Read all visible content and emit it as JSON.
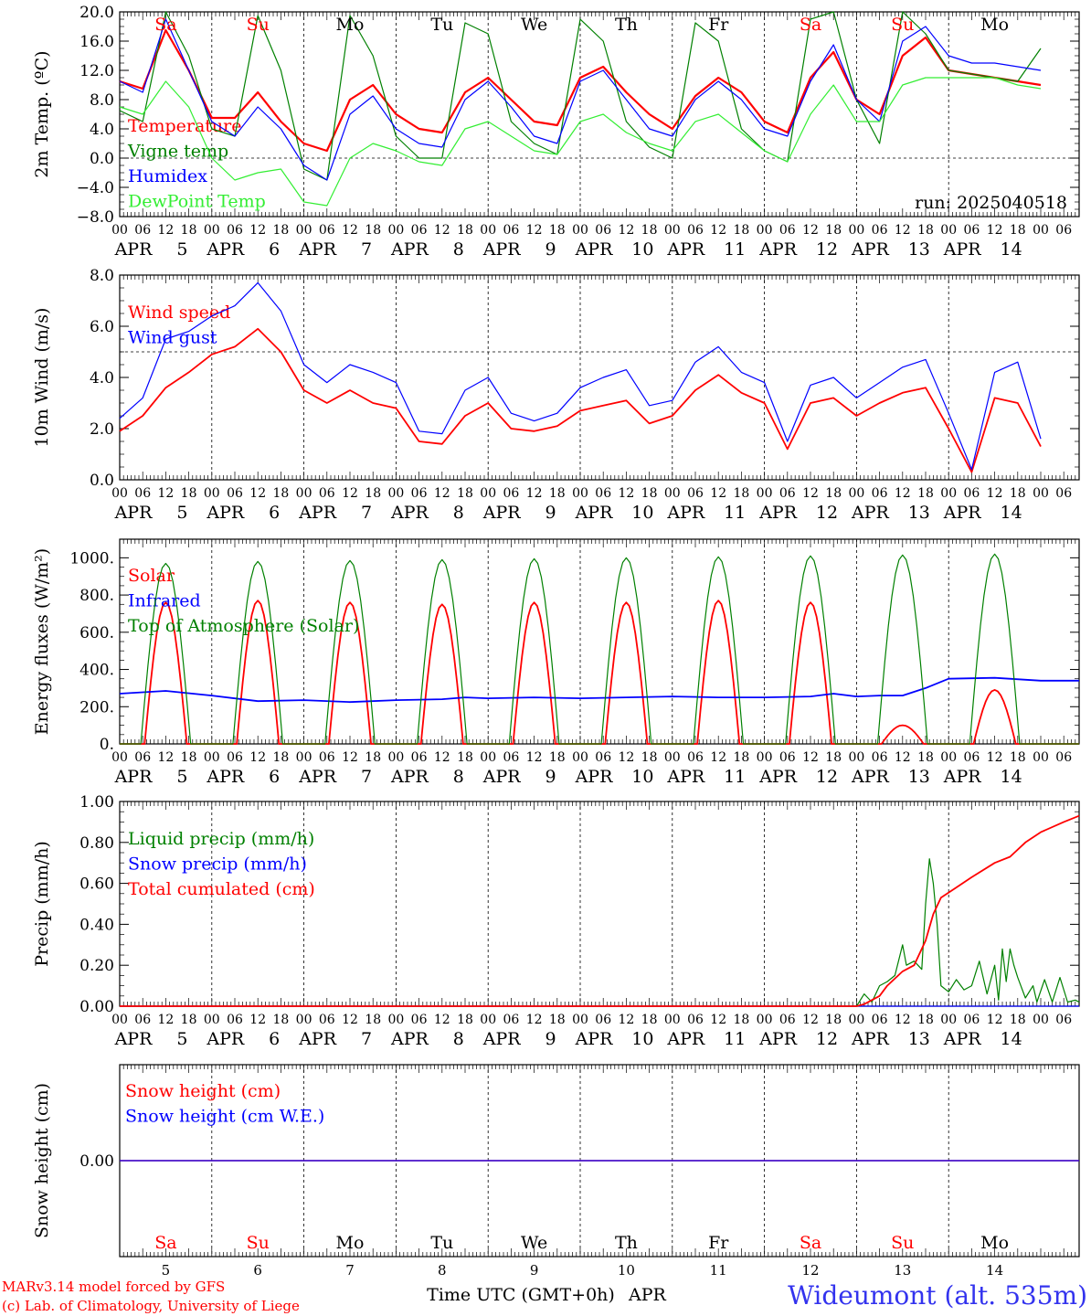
{
  "run_label": "run: 2025040518",
  "x_axis": {
    "title": "Time UTC (GMT+0h)",
    "month": "APR",
    "hour_ticks": [
      "00",
      "06",
      "12",
      "18"
    ],
    "days": [
      {
        "date": 5,
        "dow": "Sa",
        "weekend": true
      },
      {
        "date": 6,
        "dow": "Su",
        "weekend": true
      },
      {
        "date": 7,
        "dow": "Mo",
        "weekend": false
      },
      {
        "date": 8,
        "dow": "Tu",
        "weekend": false
      },
      {
        "date": 9,
        "dow": "We",
        "weekend": false
      },
      {
        "date": 10,
        "dow": "Th",
        "weekend": false
      },
      {
        "date": 11,
        "dow": "Fr",
        "weekend": false
      },
      {
        "date": 12,
        "dow": "Sa",
        "weekend": true
      },
      {
        "date": 13,
        "dow": "Su",
        "weekend": true
      },
      {
        "date": 14,
        "dow": "Mo",
        "weekend": false
      }
    ]
  },
  "footer": {
    "model_credit": "MARv3.14 model forced by GFS",
    "lab_credit": "(c) Lab. of Climatology, University of Liege",
    "site": "Wideumont (alt. 535m)"
  },
  "colors": {
    "red": "#ff0000",
    "green": "#008000",
    "blue": "#0000ff",
    "lightgreen": "#33ee33",
    "weekend": "#ff0000",
    "weekday": "#000000",
    "site": "#3333ee"
  },
  "chart_data": [
    {
      "type": "line",
      "id": "temperature",
      "ylabel": "2m Temp. (ºC)",
      "ylim": [
        -8,
        20
      ],
      "yticks": [
        "20.0",
        "16.0",
        "12.0",
        "8.0",
        "4.0",
        "0.0",
        "−4.0",
        "−8.0"
      ],
      "ytick_values": [
        20,
        16,
        12,
        8,
        4,
        0,
        -4,
        -8
      ],
      "ref_line": 0,
      "x_hours": [
        0,
        6,
        12,
        18,
        24,
        30,
        36,
        42,
        48,
        54,
        60,
        66,
        72,
        78,
        84,
        90,
        96,
        102,
        108,
        114,
        120,
        126,
        132,
        138,
        144,
        150,
        156,
        162,
        168,
        174,
        180,
        186,
        192,
        198,
        204,
        210,
        216,
        222,
        228,
        234,
        240
      ],
      "series": [
        {
          "name": "Temperature",
          "color": "#ff0000",
          "width": 2.2,
          "values": [
            10.5,
            9.5,
            17.5,
            12,
            5.5,
            5.5,
            9,
            5,
            2,
            1,
            8,
            10,
            6,
            4,
            3.5,
            9,
            11,
            8,
            5,
            4.5,
            11,
            12.5,
            9,
            6,
            4,
            8.5,
            11,
            9,
            5,
            3.5,
            11,
            14.5,
            8,
            6,
            14,
            16.5,
            12,
            11.5,
            11,
            10.5,
            10
          ]
        },
        {
          "name": "Vigne temp",
          "color": "#008000",
          "width": 1.2,
          "values": [
            6.5,
            5,
            20,
            14,
            4,
            3,
            19.5,
            12,
            -1.5,
            -3,
            19.5,
            14,
            3,
            0,
            0,
            18.5,
            17,
            5,
            2,
            0.5,
            19,
            16,
            5,
            1.5,
            0,
            18.5,
            16,
            4,
            1,
            -0.5,
            19,
            20,
            8,
            2,
            20,
            17,
            12,
            11.5,
            11,
            10.5,
            15
          ]
        },
        {
          "name": "Humidex",
          "color": "#0000ff",
          "width": 1.2,
          "values": [
            10.5,
            9,
            19,
            12,
            5,
            3,
            7,
            4,
            -1,
            -3,
            6,
            8.5,
            4,
            2,
            1.5,
            8,
            10.5,
            7,
            3,
            2,
            10.5,
            12,
            8,
            4,
            3,
            8,
            10.5,
            8,
            4,
            3,
            10.5,
            15.5,
            8,
            5,
            16,
            18,
            14,
            13,
            13,
            12.5,
            12
          ]
        },
        {
          "name": "DewPoint Temp",
          "color": "#33ee33",
          "width": 1.2,
          "values": [
            7,
            6,
            10.5,
            7,
            0,
            -3,
            -2,
            -1.5,
            -6,
            -6.5,
            0,
            2,
            1,
            -0.5,
            -1,
            4,
            5,
            3,
            1,
            0.5,
            5,
            6,
            3.5,
            2,
            1,
            5,
            6,
            3.5,
            1,
            -0.5,
            6,
            10,
            5,
            5,
            10,
            11,
            11,
            11,
            11,
            10,
            9.5
          ]
        }
      ]
    },
    {
      "type": "line",
      "id": "wind",
      "ylabel": "10m Wind (m/s)",
      "ylim": [
        0,
        8
      ],
      "yticks": [
        "8.0",
        "6.0",
        "4.0",
        "2.0",
        "0.0"
      ],
      "ytick_values": [
        8,
        6,
        4,
        2,
        0
      ],
      "ref_line": 5,
      "x_hours": [
        0,
        6,
        12,
        18,
        24,
        30,
        36,
        42,
        48,
        54,
        60,
        66,
        72,
        78,
        84,
        90,
        96,
        102,
        108,
        114,
        120,
        126,
        132,
        138,
        144,
        150,
        156,
        162,
        168,
        174,
        180,
        186,
        192,
        198,
        204,
        210,
        216,
        222,
        228,
        234,
        240
      ],
      "series": [
        {
          "name": "Wind speed",
          "color": "#ff0000",
          "width": 1.8,
          "values": [
            1.9,
            2.5,
            3.6,
            4.2,
            4.9,
            5.2,
            5.9,
            5,
            3.5,
            3,
            3.5,
            3,
            2.8,
            1.5,
            1.4,
            2.5,
            3,
            2,
            1.9,
            2.1,
            2.7,
            2.9,
            3.1,
            2.2,
            2.5,
            3.5,
            4.1,
            3.4,
            3,
            1.2,
            3,
            3.2,
            2.5,
            3,
            3.4,
            3.6,
            2,
            0.3,
            3.2,
            3,
            1.3
          ]
        },
        {
          "name": "Wind gust",
          "color": "#0000ff",
          "width": 1.2,
          "values": [
            2.4,
            3.2,
            5.5,
            5.8,
            6.4,
            6.8,
            7.7,
            6.6,
            4.5,
            3.8,
            4.5,
            4.2,
            3.8,
            1.9,
            1.8,
            3.5,
            4,
            2.6,
            2.3,
            2.6,
            3.6,
            4,
            4.3,
            2.9,
            3.1,
            4.6,
            5.2,
            4.2,
            3.8,
            1.5,
            3.7,
            4,
            3.2,
            3.8,
            4.4,
            4.7,
            2.6,
            0.4,
            4.2,
            4.6,
            1.6
          ]
        }
      ]
    },
    {
      "type": "line",
      "id": "energy",
      "ylabel": "Energy fluxes (W/m²)",
      "ylim": [
        0,
        1100
      ],
      "yticks": [
        "1000.",
        "800.",
        "600.",
        "400.",
        "200.",
        "0."
      ],
      "ytick_values": [
        1000,
        800,
        600,
        400,
        200,
        0
      ],
      "series": [
        {
          "name": "Solar",
          "color": "#ff0000",
          "width": 1.8,
          "day_peaks": [
            760,
            770,
            760,
            750,
            760,
            760,
            770,
            760,
            100,
            290
          ]
        },
        {
          "name": "Infrared",
          "color": "#0000ff",
          "width": 1.8,
          "points": [
            [
              0,
              270
            ],
            [
              12,
              285
            ],
            [
              24,
              260
            ],
            [
              36,
              230
            ],
            [
              48,
              235
            ],
            [
              60,
              225
            ],
            [
              72,
              235
            ],
            [
              84,
              240
            ],
            [
              90,
              250
            ],
            [
              96,
              245
            ],
            [
              108,
              250
            ],
            [
              120,
              245
            ],
            [
              132,
              250
            ],
            [
              144,
              255
            ],
            [
              156,
              250
            ],
            [
              168,
              250
            ],
            [
              180,
              255
            ],
            [
              186,
              270
            ],
            [
              192,
              255
            ],
            [
              198,
              260
            ],
            [
              204,
              260
            ],
            [
              210,
              300
            ],
            [
              216,
              350
            ],
            [
              228,
              355
            ],
            [
              240,
              340
            ],
            [
              250,
              340
            ]
          ]
        },
        {
          "name": "Top of Atmosphere (Solar)",
          "color": "#008000",
          "width": 1.2,
          "day_peaks": [
            970,
            980,
            985,
            990,
            995,
            1000,
            1005,
            1010,
            1015,
            1020
          ]
        }
      ]
    },
    {
      "type": "line",
      "id": "precip",
      "ylabel": "Precip (mm/h)",
      "ylim": [
        0,
        1
      ],
      "yticks": [
        "1.00",
        "0.80",
        "0.60",
        "0.40",
        "0.20",
        "0.00"
      ],
      "ytick_values": [
        1,
        0.8,
        0.6,
        0.4,
        0.2,
        0
      ],
      "series": [
        {
          "name": "Liquid precip (mm/h)",
          "color": "#008000",
          "width": 1.2,
          "points": [
            [
              0,
              0
            ],
            [
              192,
              0
            ],
            [
              194,
              0.06
            ],
            [
              196,
              0.02
            ],
            [
              198,
              0.1
            ],
            [
              200,
              0.12
            ],
            [
              202,
              0.15
            ],
            [
              204,
              0.3
            ],
            [
              205,
              0.2
            ],
            [
              207,
              0.22
            ],
            [
              209,
              0.18
            ],
            [
              210,
              0.5
            ],
            [
              211,
              0.72
            ],
            [
              212,
              0.6
            ],
            [
              213,
              0.4
            ],
            [
              214,
              0.1
            ],
            [
              216,
              0.07
            ],
            [
              218,
              0.13
            ],
            [
              220,
              0.08
            ],
            [
              222,
              0.1
            ],
            [
              224,
              0.22
            ],
            [
              226,
              0.06
            ],
            [
              228,
              0.2
            ],
            [
              229,
              0.03
            ],
            [
              230,
              0.28
            ],
            [
              231,
              0.12
            ],
            [
              232,
              0.28
            ],
            [
              233,
              0.2
            ],
            [
              234,
              0.14
            ],
            [
              236,
              0.04
            ],
            [
              238,
              0.1
            ],
            [
              239,
              0.02
            ],
            [
              241,
              0.13
            ],
            [
              243,
              0.02
            ],
            [
              245,
              0.14
            ],
            [
              247,
              0.02
            ],
            [
              249,
              0.03
            ],
            [
              250,
              0.02
            ]
          ]
        },
        {
          "name": "Snow precip (mm/h)",
          "color": "#0000ff",
          "width": 1.2,
          "points": [
            [
              0,
              0
            ],
            [
              250,
              0
            ]
          ]
        },
        {
          "name": "Total cumulated (cm)",
          "color": "#ff0000",
          "width": 1.8,
          "points": [
            [
              0,
              0
            ],
            [
              192,
              0
            ],
            [
              194,
              0.01
            ],
            [
              198,
              0.05
            ],
            [
              200,
              0.1
            ],
            [
              204,
              0.17
            ],
            [
              207,
              0.2
            ],
            [
              210,
              0.32
            ],
            [
              212,
              0.45
            ],
            [
              214,
              0.53
            ],
            [
              218,
              0.58
            ],
            [
              222,
              0.63
            ],
            [
              228,
              0.7
            ],
            [
              232,
              0.73
            ],
            [
              236,
              0.8
            ],
            [
              240,
              0.85
            ],
            [
              246,
              0.9
            ],
            [
              250,
              0.93
            ]
          ]
        }
      ]
    },
    {
      "type": "line",
      "id": "snow",
      "ylabel": "Snow height (cm)",
      "ylim": [
        -1,
        1
      ],
      "yticks": [
        "0.00"
      ],
      "ytick_values": [
        0
      ],
      "series": [
        {
          "name": "Snow height (cm)",
          "color": "#ff0000",
          "width": 1.4,
          "points": [
            [
              0,
              0
            ],
            [
              250,
              0
            ]
          ]
        },
        {
          "name": "Snow height (cm W.E.)",
          "color": "#0000ff",
          "width": 1.2,
          "points": [
            [
              0,
              0
            ],
            [
              250,
              0
            ]
          ]
        }
      ]
    }
  ]
}
